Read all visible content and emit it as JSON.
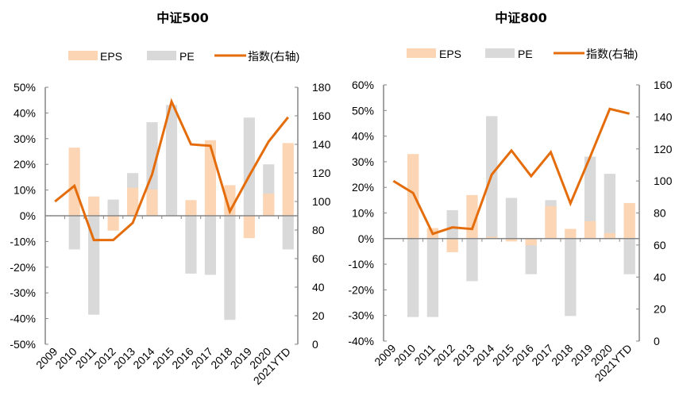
{
  "chart_data": [
    {
      "type": "bar",
      "title": "中证500",
      "legend": [
        "EPS",
        "PE",
        "指数(右轴)"
      ],
      "legend_position": "top",
      "categories": [
        "2009",
        "2010",
        "2011",
        "2012",
        "2013",
        "2014",
        "2015",
        "2016",
        "2017",
        "2018",
        "2019",
        "2020",
        "2021YTD"
      ],
      "series": [
        {
          "name": "EPS",
          "kind": "bar",
          "axis": "left",
          "values": [
            null,
            26.5,
            7.5,
            -5.8,
            10.9,
            10.2,
            0.0,
            6.1,
            29.4,
            11.9,
            -8.7,
            8.6,
            28.3
          ]
        },
        {
          "name": "PE",
          "kind": "bar",
          "axis": "left",
          "values": [
            null,
            -13.1,
            -38.5,
            6.3,
            16.6,
            36.4,
            43.1,
            -22.5,
            -23.0,
            -40.5,
            38.2,
            20.0,
            -13.1
          ]
        },
        {
          "name": "指数(右轴)",
          "kind": "line",
          "axis": "right",
          "values": [
            100,
            111,
            73,
            73,
            85,
            119,
            170,
            140,
            139,
            93,
            118,
            142,
            159
          ]
        }
      ],
      "y_left": {
        "min": -50,
        "max": 50,
        "step": 10,
        "tick_labels": [
          "-50%",
          "-40%",
          "-30%",
          "-20%",
          "-10%",
          "0%",
          "10%",
          "20%",
          "30%",
          "40%",
          "50%"
        ]
      },
      "y_right": {
        "min": 0,
        "max": 180,
        "step": 20,
        "tick_labels": [
          "0",
          "20",
          "40",
          "60",
          "80",
          "100",
          "120",
          "140",
          "160",
          "180"
        ]
      },
      "xlabel": "",
      "ylabel": "",
      "grid": false
    },
    {
      "type": "bar",
      "title": "中证800",
      "legend": [
        "EPS",
        "PE",
        "指数(右轴)"
      ],
      "legend_position": "top",
      "categories": [
        "2009",
        "2010",
        "2011",
        "2012",
        "2013",
        "2014",
        "2015",
        "2016",
        "2017",
        "2018",
        "2019",
        "2020",
        "2021YTD"
      ],
      "series": [
        {
          "name": "EPS",
          "kind": "bar",
          "axis": "left",
          "values": [
            null,
            33.0,
            4.1,
            -5.3,
            17.0,
            0.7,
            -1.1,
            -2.6,
            12.7,
            3.8,
            6.8,
            2.2,
            13.9
          ]
        },
        {
          "name": "PE",
          "kind": "bar",
          "axis": "left",
          "values": [
            null,
            -30.6,
            -30.6,
            11.1,
            -16.6,
            47.8,
            15.9,
            -13.9,
            15.0,
            -30.2,
            32.0,
            25.3,
            -13.9
          ]
        },
        {
          "name": "指数(右轴)",
          "kind": "line",
          "axis": "right",
          "values": [
            100,
            92.5,
            67,
            71,
            70,
            104,
            119,
            103,
            118,
            86,
            115,
            145,
            142
          ]
        }
      ],
      "y_left": {
        "min": -40,
        "max": 60,
        "step": 10,
        "tick_labels": [
          "-40%",
          "-30%",
          "-20%",
          "-10%",
          "0%",
          "10%",
          "20%",
          "30%",
          "40%",
          "50%",
          "60%"
        ]
      },
      "y_right": {
        "min": 0,
        "max": 160,
        "step": 20,
        "tick_labels": [
          "0",
          "20",
          "40",
          "60",
          "80",
          "100",
          "120",
          "140",
          "160"
        ]
      },
      "xlabel": "",
      "ylabel": "",
      "grid": false
    }
  ],
  "colors": {
    "eps": "#FCD5B5",
    "pe": "#D9D9D9",
    "index_line": "#E46C0A",
    "axis": "#868686"
  }
}
